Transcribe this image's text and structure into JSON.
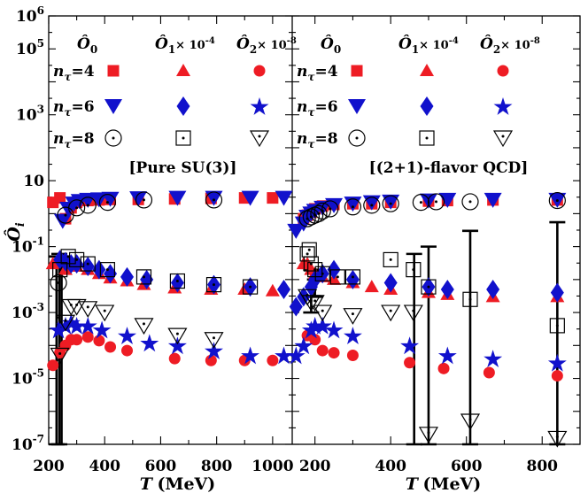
{
  "chart_data": {
    "type": "scatter",
    "colors": {
      "red": "#ee1c24",
      "blue": "#1111cc",
      "black": "#000000"
    },
    "y_axis": {
      "scale": "log",
      "range": [
        1e-07,
        1000000.0
      ],
      "ticks": [
        {
          "value": 1000000.0,
          "base": "10",
          "exp": "6"
        },
        {
          "value": 100000.0,
          "base": "10",
          "exp": "5"
        },
        {
          "value": 1000.0,
          "base": "10",
          "exp": "3"
        },
        {
          "value": 10,
          "base": "10",
          "exp": ""
        },
        {
          "value": 0.1,
          "base": "10",
          "exp": "-1"
        },
        {
          "value": 0.001,
          "base": "10",
          "exp": "-3"
        },
        {
          "value": 1e-05,
          "base": "10",
          "exp": "-5"
        },
        {
          "value": 1e-07,
          "base": "10",
          "exp": "-7"
        }
      ],
      "label_symbol": "Ô",
      "label_sub": "i"
    },
    "legend": {
      "headers": [
        {
          "sym": "Ô",
          "sub": "0",
          "mult": ""
        },
        {
          "sym": "Ô",
          "sub": "1",
          "mult": "× 10",
          "exp": "-4"
        },
        {
          "sym": "Ô",
          "sub": "2",
          "mult": "× 10",
          "exp": "-8"
        }
      ],
      "rows": [
        {
          "n_label": "n",
          "tau": "τ",
          "value": "=4"
        },
        {
          "n_label": "n",
          "tau": "τ",
          "value": "=6"
        },
        {
          "n_label": "n",
          "tau": "τ",
          "value": "=8"
        }
      ],
      "markers": [
        [
          "square-red",
          "triangle-red",
          "circle-red"
        ],
        [
          "triangle-down-blue",
          "diamond-blue",
          "star-blue"
        ],
        [
          "circle-dot-black",
          "square-dot-black",
          "triangle-down-dot-black"
        ]
      ]
    },
    "panels": [
      {
        "title": "[Pure SU(3)]",
        "x_label": "T",
        "x_unit": "(MeV)",
        "x_range": [
          200,
          1070
        ],
        "x_ticks": [
          200,
          400,
          600,
          800,
          1000
        ],
        "x_tick_labels": [
          "200",
          "400",
          "600",
          "800",
          "1000"
        ],
        "series": [
          {
            "marker": "square-red",
            "x": [
              215,
              240,
              260,
              280,
              300,
              340,
              380,
              420,
              520,
              650,
              780,
              900,
              1000
            ],
            "y": [
              2.2,
              3,
              0.7,
              1.5,
              2.2,
              2.5,
              2.6,
              2.7,
              2.7,
              2.8,
              2.9,
              3.0,
              3.0
            ]
          },
          {
            "marker": "triangle-red",
            "x": [
              215,
              240,
              260,
              280,
              300,
              340,
              380,
              420,
              480,
              540,
              650,
              780,
              900,
              1000
            ],
            "y": [
              0.03,
              0.04,
              0.02,
              0.025,
              0.025,
              0.02,
              0.015,
              0.011,
              0.009,
              0.007,
              0.0055,
              0.005,
              0.005,
              0.0045
            ]
          },
          {
            "marker": "circle-red",
            "x": [
              215,
              240,
              260,
              280,
              300,
              340,
              380,
              420,
              480,
              650,
              780,
              900,
              1000
            ],
            "y": [
              2.5e-05,
              6e-05,
              0.0001,
              0.00015,
              0.00015,
              0.00018,
              0.00014,
              9e-05,
              7e-05,
              4e-05,
              3.5e-05,
              3.5e-05,
              3.5e-05
            ]
          },
          {
            "marker": "triangle-down-blue",
            "x": [
              250,
              270,
              290,
              310,
              340,
              380,
              420,
              520,
              660,
              790,
              920,
              1040
            ],
            "y": [
              0.6,
              1.4,
              2.0,
              2.4,
              2.6,
              2.7,
              2.8,
              2.9,
              3.0,
              3.0,
              3.0,
              3.0
            ]
          },
          {
            "marker": "diamond-blue",
            "x": [
              240,
              260,
              280,
              300,
              340,
              380,
              420,
              480,
              550,
              660,
              790,
              920,
              1040
            ],
            "y": [
              0.04,
              0.035,
              0.03,
              0.03,
              0.025,
              0.02,
              0.015,
              0.012,
              0.01,
              0.008,
              0.007,
              0.006,
              0.005
            ]
          },
          {
            "marker": "star-blue",
            "x": [
              235,
              260,
              280,
              300,
              340,
              390,
              480,
              560,
              660,
              790,
              920,
              1040
            ],
            "y": [
              0.0003,
              0.0004,
              0.0005,
              0.0004,
              0.0004,
              0.0003,
              0.0002,
              0.00012,
              0.0001,
              7e-05,
              5e-05,
              5e-05
            ]
          },
          {
            "marker": "circle-dot-black",
            "x": [
              235,
              260,
              300,
              340,
              410,
              540,
              790
            ],
            "y": [
              0.008,
              0.9,
              1.5,
              1.8,
              2.2,
              2.6,
              2.6
            ]
          },
          {
            "marker": "square-dot-black",
            "x": [
              240,
              270,
              300,
              340,
              410,
              540,
              660,
              790,
              920
            ],
            "y": [
              0.02,
              0.05,
              0.04,
              0.03,
              0.02,
              0.012,
              0.009,
              0.007,
              0.006
            ]
          },
          {
            "marker": "triangle-down-dot-black",
            "x": [
              240,
              260,
              280,
              300,
              340,
              400,
              540,
              660,
              790
            ],
            "y": [
              5e-05,
              0.0005,
              0.0015,
              0.0015,
              0.0013,
              0.001,
              0.0004,
              0.0002,
              0.00015
            ]
          }
        ],
        "error_bars": [
          {
            "x": 228,
            "ylow": 1e-07,
            "yhigh": 0.05,
            "cap": true
          },
          {
            "x": 238,
            "ylow": 1e-07,
            "yhigh": 0.06,
            "cap": true
          },
          {
            "x": 246,
            "ylow": 1e-07,
            "yhigh": 0.04,
            "cap": false
          }
        ]
      },
      {
        "title": "[(2+1)-flavor QCD]",
        "x_label": "T",
        "x_unit": "(MeV)",
        "x_range": [
          140,
          900
        ],
        "x_ticks": [
          200,
          400,
          600,
          800
        ],
        "x_tick_labels": [
          "200",
          "400",
          "600",
          "800"
        ],
        "series": [
          {
            "marker": "square-red",
            "x": [
              170,
              180,
              190,
              200,
              220,
              250,
              300,
              350,
              400,
              500,
              550,
              670,
              840
            ],
            "y": [
              0.7,
              0.9,
              1.1,
              1.4,
              1.7,
              1.9,
              2.0,
              2.0,
              2.2,
              2.4,
              2.5,
              2.6,
              2.6
            ]
          },
          {
            "marker": "triangle-red",
            "x": [
              170,
              180,
              190,
              200,
              220,
              250,
              300,
              350,
              400,
              500,
              550,
              670,
              840
            ],
            "y": [
              0.03,
              0.03,
              0.02,
              0.015,
              0.012,
              0.01,
              0.008,
              0.006,
              0.005,
              0.004,
              0.0035,
              0.003,
              0.003
            ]
          },
          {
            "marker": "circle-red",
            "x": [
              180,
              200,
              220,
              250,
              300,
              450,
              540,
              660,
              840
            ],
            "y": [
              0.0002,
              0.00015,
              7e-05,
              6e-05,
              5e-05,
              3e-05,
              2e-05,
              1.5e-05,
              1.2e-05
            ]
          },
          {
            "marker": "triangle-down-blue",
            "x": [
              150,
              170,
              180,
              190,
              200,
              220,
              250,
              300,
              350,
              400,
              500,
              550,
              670,
              840
            ],
            "y": [
              0.3,
              0.5,
              0.8,
              1.0,
              1.2,
              1.5,
              1.8,
              2.0,
              2.2,
              2.3,
              2.5,
              2.6,
              2.6,
              2.6
            ]
          },
          {
            "marker": "diamond-blue",
            "x": [
              150,
              170,
              190,
              200,
              220,
              250,
              300,
              400,
              500,
              550,
              670,
              840
            ],
            "y": [
              0.0015,
              0.003,
              0.006,
              0.01,
              0.015,
              0.02,
              0.01,
              0.008,
              0.006,
              0.005,
              0.005,
              0.004
            ]
          },
          {
            "marker": "star-blue",
            "x": [
              150,
              170,
              190,
              200,
              220,
              250,
              300,
              450,
              550,
              670,
              840
            ],
            "y": [
              5e-05,
              0.0001,
              0.0003,
              0.0004,
              0.0004,
              0.0003,
              0.0002,
              0.0001,
              5e-05,
              4e-05,
              3e-05
            ]
          },
          {
            "marker": "circle-dot-black",
            "x": [
              180,
              190,
              200,
              210,
              220,
              240,
              300,
              350,
              400,
              480,
              520,
              610,
              840
            ],
            "y": [
              0.7,
              0.8,
              0.9,
              1.0,
              1.2,
              1.4,
              1.6,
              1.8,
              2.0,
              2.2,
              2.3,
              2.3,
              2.5
            ]
          },
          {
            "marker": "square-dot-black",
            "x": [
              180,
              185,
              190,
              200,
              220,
              260,
              300,
              400,
              460,
              500,
              610,
              840
            ],
            "y": [
              0.06,
              0.08,
              0.03,
              0.02,
              0.015,
              0.012,
              0.012,
              0.04,
              0.02,
              0.006,
              0.0025,
              0.0004
            ]
          },
          {
            "marker": "triangle-down-dot-black",
            "x": [
              180,
              190,
              200,
              220,
              300,
              400,
              460,
              500,
              610,
              840
            ],
            "y": [
              0.003,
              0.002,
              0.002,
              0.001,
              0.0008,
              0.001,
              0.001,
              2e-07,
              5e-07,
              1.5e-07
            ]
          }
        ],
        "error_bars": [
          {
            "x": 190,
            "ylow": 0.001,
            "yhigh": 0.02,
            "cap": true
          },
          {
            "x": 200,
            "ylow": 0.003,
            "yhigh": 0.01,
            "cap": true
          },
          {
            "x": 462,
            "ylow": 1e-07,
            "yhigh": 0.06,
            "cap": true
          },
          {
            "x": 500,
            "ylow": 1e-07,
            "yhigh": 0.1,
            "cap": true
          },
          {
            "x": 610,
            "ylow": 1e-07,
            "yhigh": 0.3,
            "cap": true
          },
          {
            "x": 840,
            "ylow": 1e-07,
            "yhigh": 0.55,
            "cap": true
          }
        ]
      }
    ]
  }
}
